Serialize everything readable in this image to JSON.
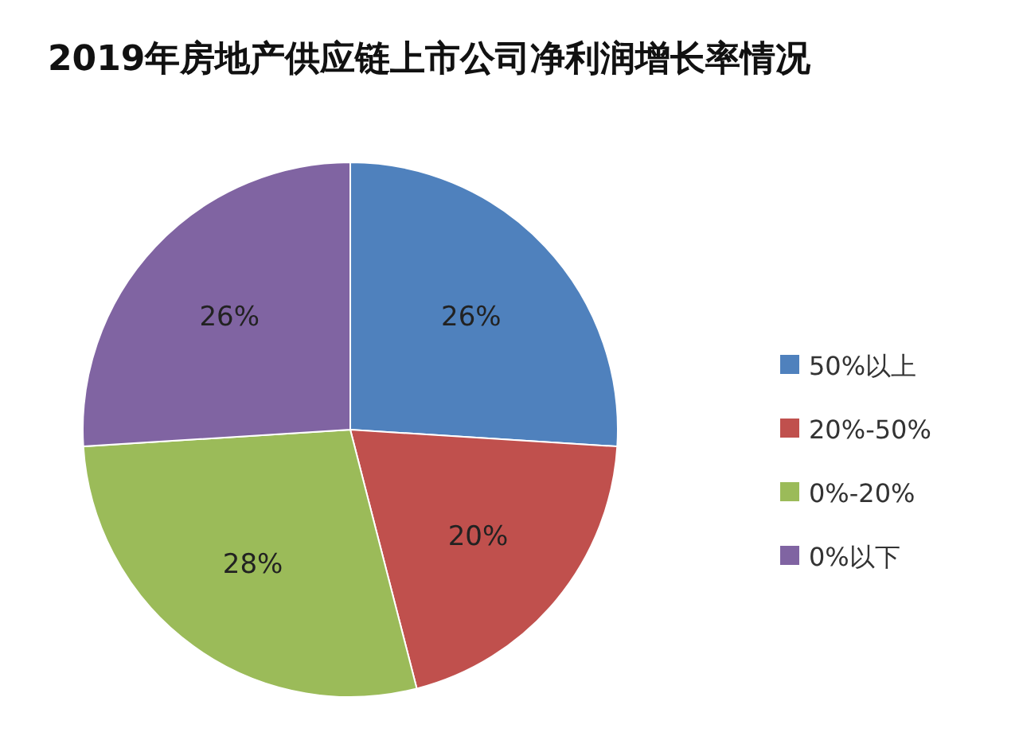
{
  "chart_data": {
    "type": "pie",
    "title": "2019年房地产供应链上市公司净利润增长率情况",
    "categories": [
      "50%以上",
      "20%-50%",
      "0%-20%",
      "0%以下"
    ],
    "values": [
      26,
      20,
      28,
      26
    ],
    "colors": [
      "#4f81bd",
      "#c0504d",
      "#9bbb59",
      "#8064a2"
    ],
    "value_labels": [
      "26%",
      "20%",
      "28%",
      "26%"
    ],
    "legend": "right"
  }
}
